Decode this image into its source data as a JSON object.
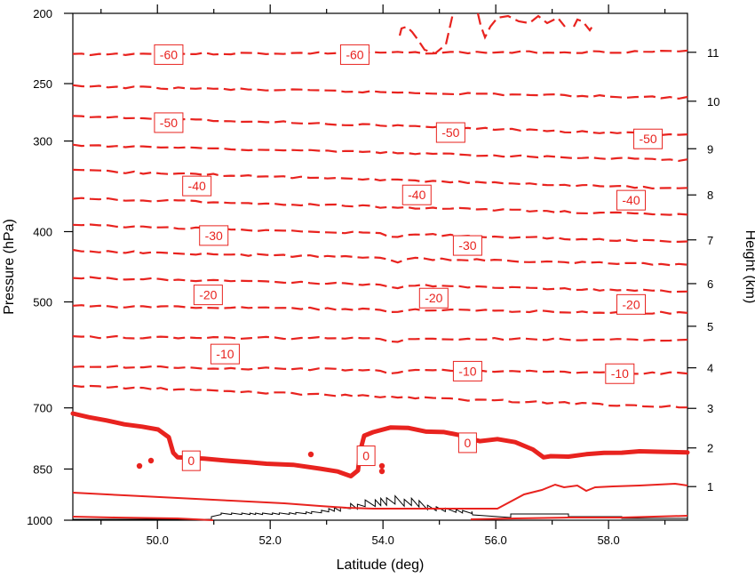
{
  "chart_data": {
    "type": "line",
    "title": "",
    "xlabel": "Latitude (deg)",
    "ylabel_left": "Pressure (hPa)",
    "ylabel_right": "Height (km)",
    "xlim": [
      48.5,
      59.4
    ],
    "x_ticks": [
      "50.0",
      "52.0",
      "54.0",
      "56.0",
      "58.0"
    ],
    "pressure_ticks": [
      "200",
      "250",
      "300",
      "400",
      "500",
      "700",
      "850",
      "1000"
    ],
    "height_ticks": [
      "1",
      "2",
      "3",
      "4",
      "5",
      "6",
      "7",
      "8",
      "9",
      "10",
      "11"
    ],
    "series_color": "#e8231f",
    "terrain_color": "#000000",
    "contour_labels": [
      {
        "text": "-60",
        "lat": 50.2,
        "p": 228
      },
      {
        "text": "-60",
        "lat": 53.5,
        "p": 228
      },
      {
        "text": "-50",
        "lat": 50.2,
        "p": 283
      },
      {
        "text": "-50",
        "lat": 55.2,
        "p": 292
      },
      {
        "text": "-50",
        "lat": 58.7,
        "p": 298
      },
      {
        "text": "-40",
        "lat": 50.7,
        "p": 346
      },
      {
        "text": "-40",
        "lat": 54.6,
        "p": 356
      },
      {
        "text": "-40",
        "lat": 58.4,
        "p": 362
      },
      {
        "text": "-30",
        "lat": 51.0,
        "p": 405
      },
      {
        "text": "-30",
        "lat": 55.5,
        "p": 418
      },
      {
        "text": "-20",
        "lat": 50.9,
        "p": 489
      },
      {
        "text": "-20",
        "lat": 54.9,
        "p": 494
      },
      {
        "text": "-20",
        "lat": 58.4,
        "p": 504
      },
      {
        "text": "-10",
        "lat": 51.2,
        "p": 590
      },
      {
        "text": "-10",
        "lat": 55.5,
        "p": 623
      },
      {
        "text": "-10",
        "lat": 58.2,
        "p": 628
      },
      {
        "text": "0",
        "lat": 50.6,
        "p": 828
      },
      {
        "text": "0",
        "lat": 53.7,
        "p": 815
      },
      {
        "text": "0",
        "lat": 55.5,
        "p": 782
      }
    ]
  }
}
